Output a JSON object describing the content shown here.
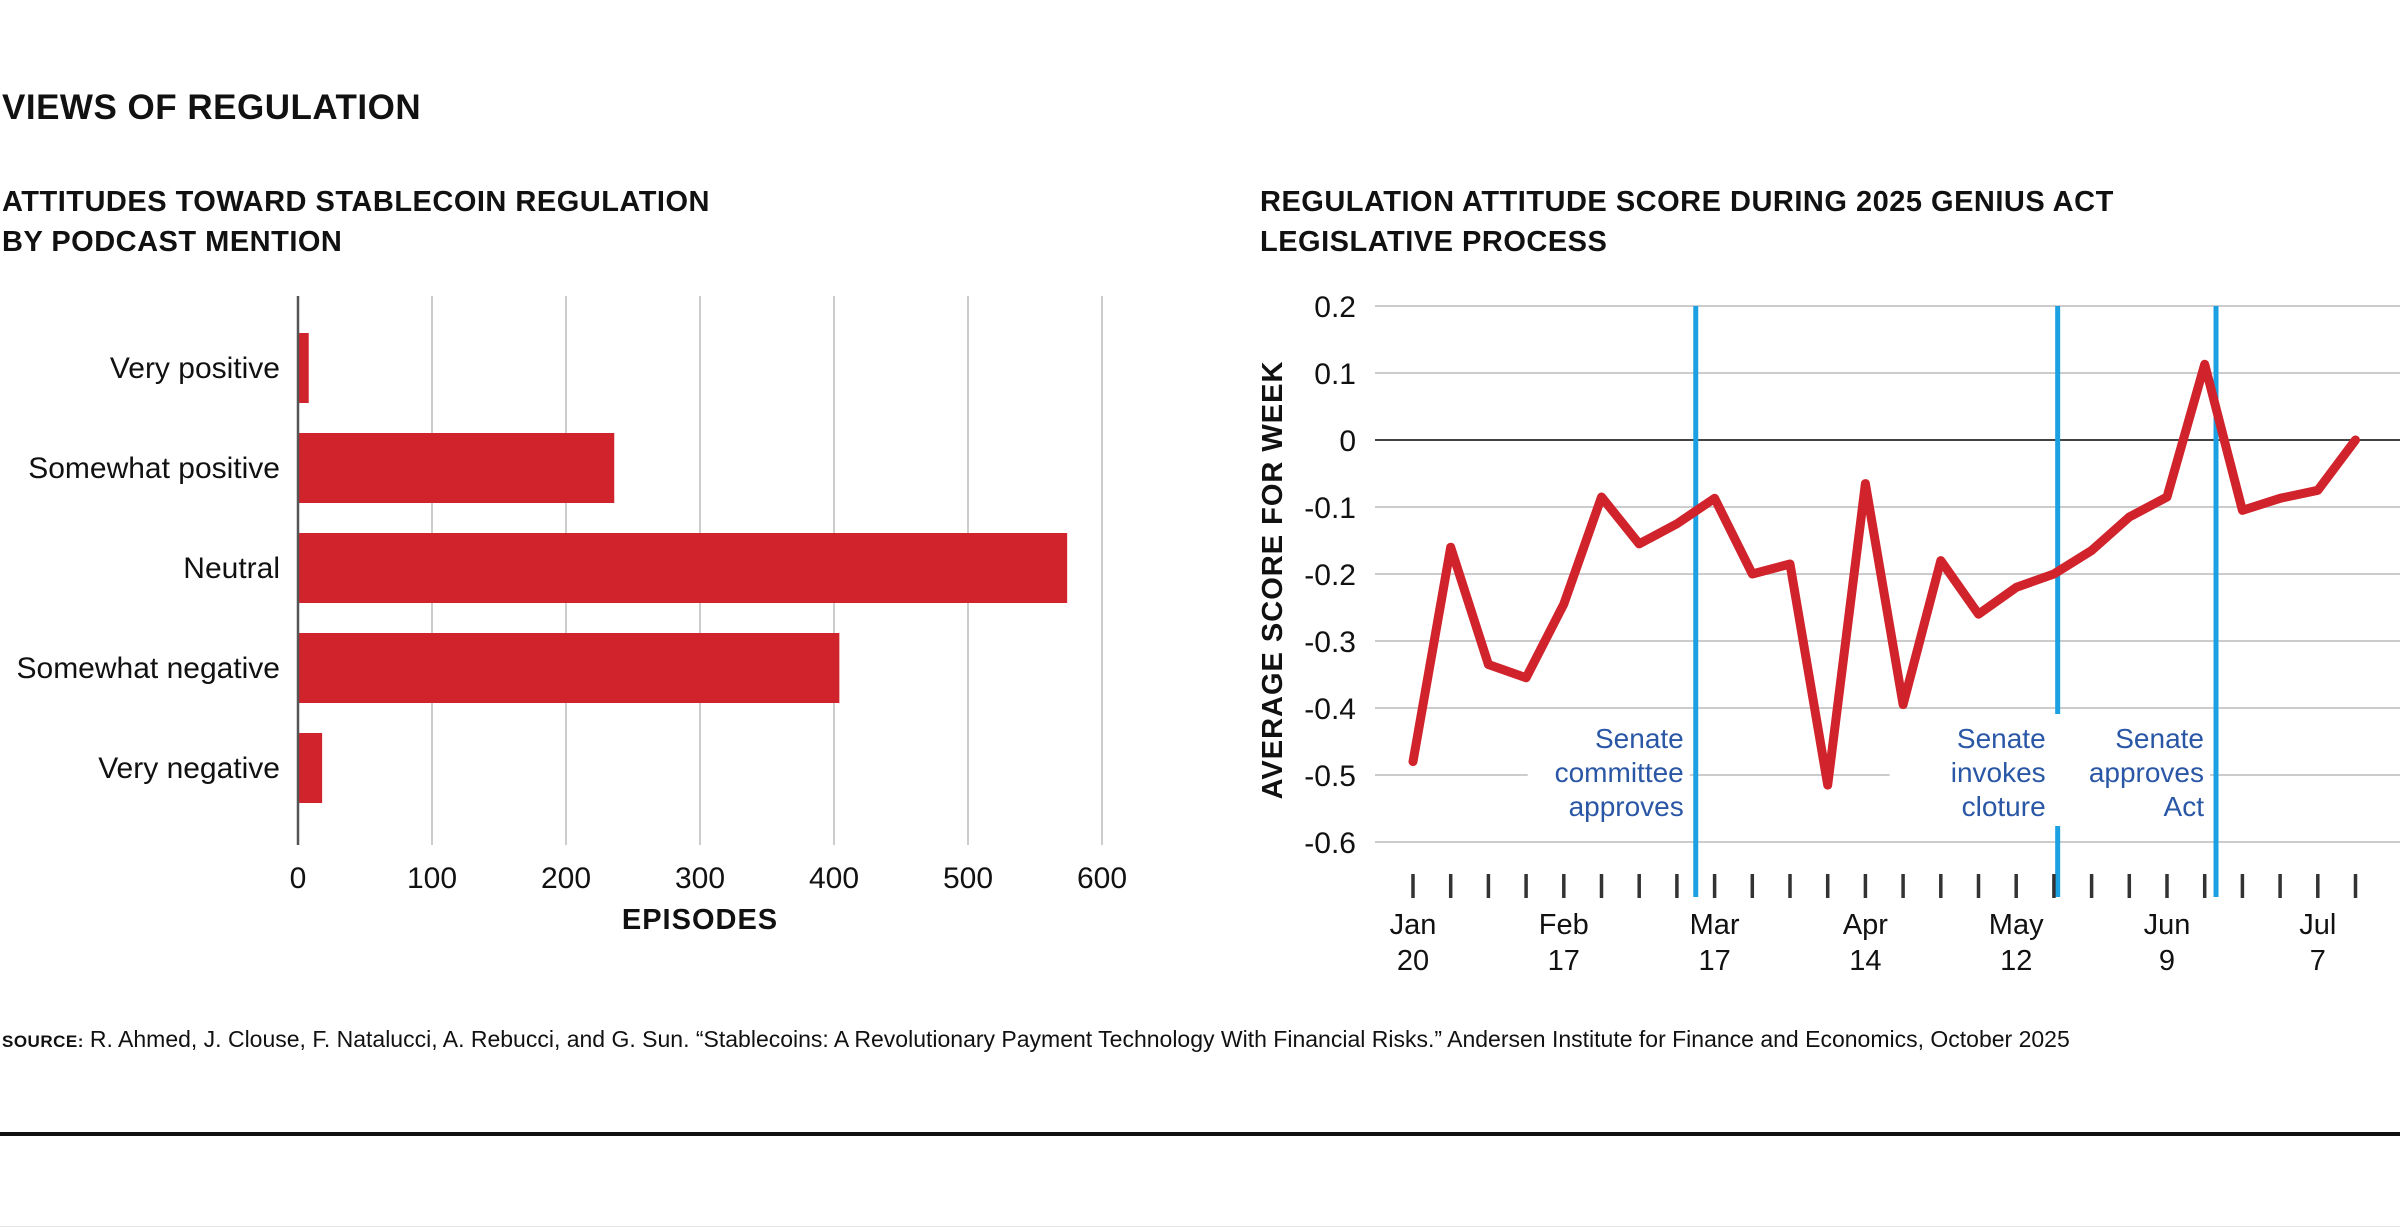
{
  "page": {
    "title": "VIEWS OF REGULATION",
    "source_label": "SOURCE:",
    "source_text": "R. Ahmed, J. Clouse, F. Natalucci, A. Rebucci, and G. Sun. “Stablecoins: A Revolutionary Payment Technology With Financial Risks.” Andersen Institute for Finance and Economics, October 2025",
    "colors": {
      "series": "#d1232b",
      "event_line": "#1ba1e2",
      "event_text": "#2a57a5",
      "grid": "#cccccc",
      "axis": "#555555"
    }
  },
  "chart_data": [
    {
      "type": "bar",
      "orientation": "horizontal",
      "title_line1": "ATTITUDES TOWARD STABLECOIN REGULATION",
      "title_line2": "BY PODCAST MENTION",
      "categories": [
        "Very positive",
        "Somewhat positive",
        "Neutral",
        "Somewhat negative",
        "Very negative"
      ],
      "values": [
        8,
        236,
        574,
        404,
        18
      ],
      "xlabel": "EPISODES",
      "xlim": [
        0,
        600
      ],
      "xticks": [
        0,
        100,
        200,
        300,
        400,
        500,
        600
      ],
      "grid": "vertical"
    },
    {
      "type": "line",
      "title_line1": "REGULATION ATTITUDE SCORE DURING 2025 GENIUS ACT",
      "title_line2": "LEGISLATIVE PROCESS",
      "ylabel": "AVERAGE SCORE FOR WEEK",
      "ylim": [
        -0.6,
        0.2
      ],
      "yticks": [
        "0.2",
        "0.1",
        "0",
        "-0.1",
        "-0.2",
        "-0.3",
        "-0.4",
        "-0.5",
        "-0.6"
      ],
      "x_tick_labels": [
        {
          "week": 0,
          "month": "Jan",
          "day": "20"
        },
        {
          "week": 4,
          "month": "Feb",
          "day": "17"
        },
        {
          "week": 8,
          "month": "Mar",
          "day": "17"
        },
        {
          "week": 12,
          "month": "Apr",
          "day": "14"
        },
        {
          "week": 16,
          "month": "May",
          "day": "12"
        },
        {
          "week": 20,
          "month": "Jun",
          "day": "9"
        },
        {
          "week": 24,
          "month": "Jul",
          "day": "7"
        }
      ],
      "week_count": 26,
      "series": [
        {
          "values": [
            -0.48,
            -0.16,
            -0.335,
            -0.355,
            -0.245,
            -0.085,
            -0.155,
            -0.125,
            -0.087,
            -0.2,
            -0.185,
            -0.515,
            -0.065,
            -0.395,
            -0.18,
            -0.26,
            -0.22,
            -0.2,
            -0.165,
            -0.115,
            -0.085,
            0.113,
            -0.105,
            -0.087,
            -0.075,
            0.0
          ]
        }
      ],
      "events": [
        {
          "week": 7.5,
          "line1": "Senate",
          "line2": "committee",
          "line3": "approves"
        },
        {
          "week": 17.1,
          "line1": "Senate",
          "line2": "invokes",
          "line3": "cloture"
        },
        {
          "week": 21.3,
          "line1": "Senate",
          "line2": "approves",
          "line3": "Act"
        }
      ]
    }
  ]
}
